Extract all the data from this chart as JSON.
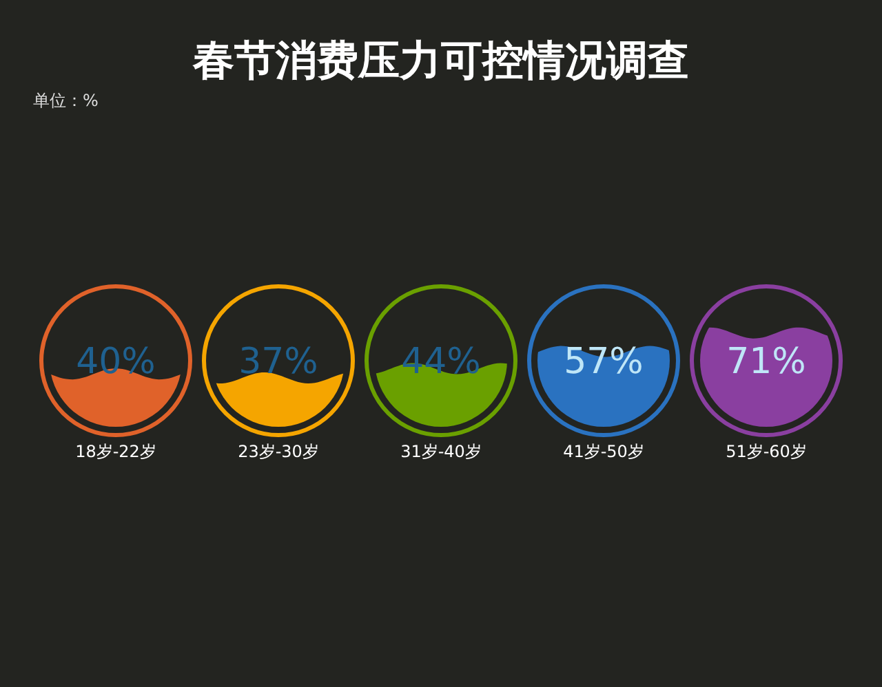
{
  "chart_data": {
    "type": "other",
    "title": "春节消费压力可控情况调查",
    "annotations": [
      "单位：%"
    ],
    "categories": [
      "18岁-22岁",
      "23岁-30岁",
      "31岁-40岁",
      "41岁-50岁",
      "51岁-60岁"
    ],
    "values": [
      40,
      37,
      44,
      57,
      71
    ],
    "value_labels": [
      "40%",
      "37%",
      "44%",
      "57%",
      "71%"
    ],
    "colors": [
      "#e0622a",
      "#f5a500",
      "#6aa000",
      "#2a72c0",
      "#8a3fa0"
    ]
  }
}
